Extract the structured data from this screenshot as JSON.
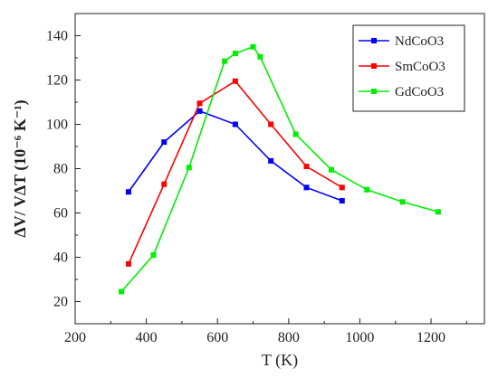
{
  "chart_data": {
    "type": "line",
    "xlabel": "T (K)",
    "ylabel": "ΔV/ VΔT (10⁻⁶ K⁻¹)",
    "xlim": [
      200,
      1350
    ],
    "ylim": [
      10,
      150
    ],
    "xticks": [
      200,
      400,
      600,
      800,
      1000,
      1200
    ],
    "yticks": [
      20,
      40,
      60,
      80,
      100,
      120,
      140
    ],
    "grid": false,
    "legend_position": "top-right",
    "series": [
      {
        "name": "NdCoO3",
        "color": "#0000ff",
        "x": [
          350,
          450,
          550,
          650,
          750,
          850,
          950
        ],
        "y": [
          69.5,
          92,
          106,
          100,
          83.5,
          71.5,
          65.5
        ]
      },
      {
        "name": "SmCoO3",
        "color": "#ff0000",
        "x": [
          350,
          450,
          550,
          650,
          750,
          850,
          950
        ],
        "y": [
          37,
          73,
          109.5,
          119.5,
          100,
          81,
          71.5
        ]
      },
      {
        "name": "GdCoO3",
        "color": "#00ee00",
        "x": [
          330,
          420,
          520,
          620,
          650,
          700,
          720,
          820,
          920,
          1020,
          1120,
          1220
        ],
        "y": [
          24.5,
          41,
          80.5,
          128.5,
          132,
          135,
          130.5,
          95.5,
          79.5,
          70.5,
          65,
          60.5
        ]
      }
    ]
  }
}
